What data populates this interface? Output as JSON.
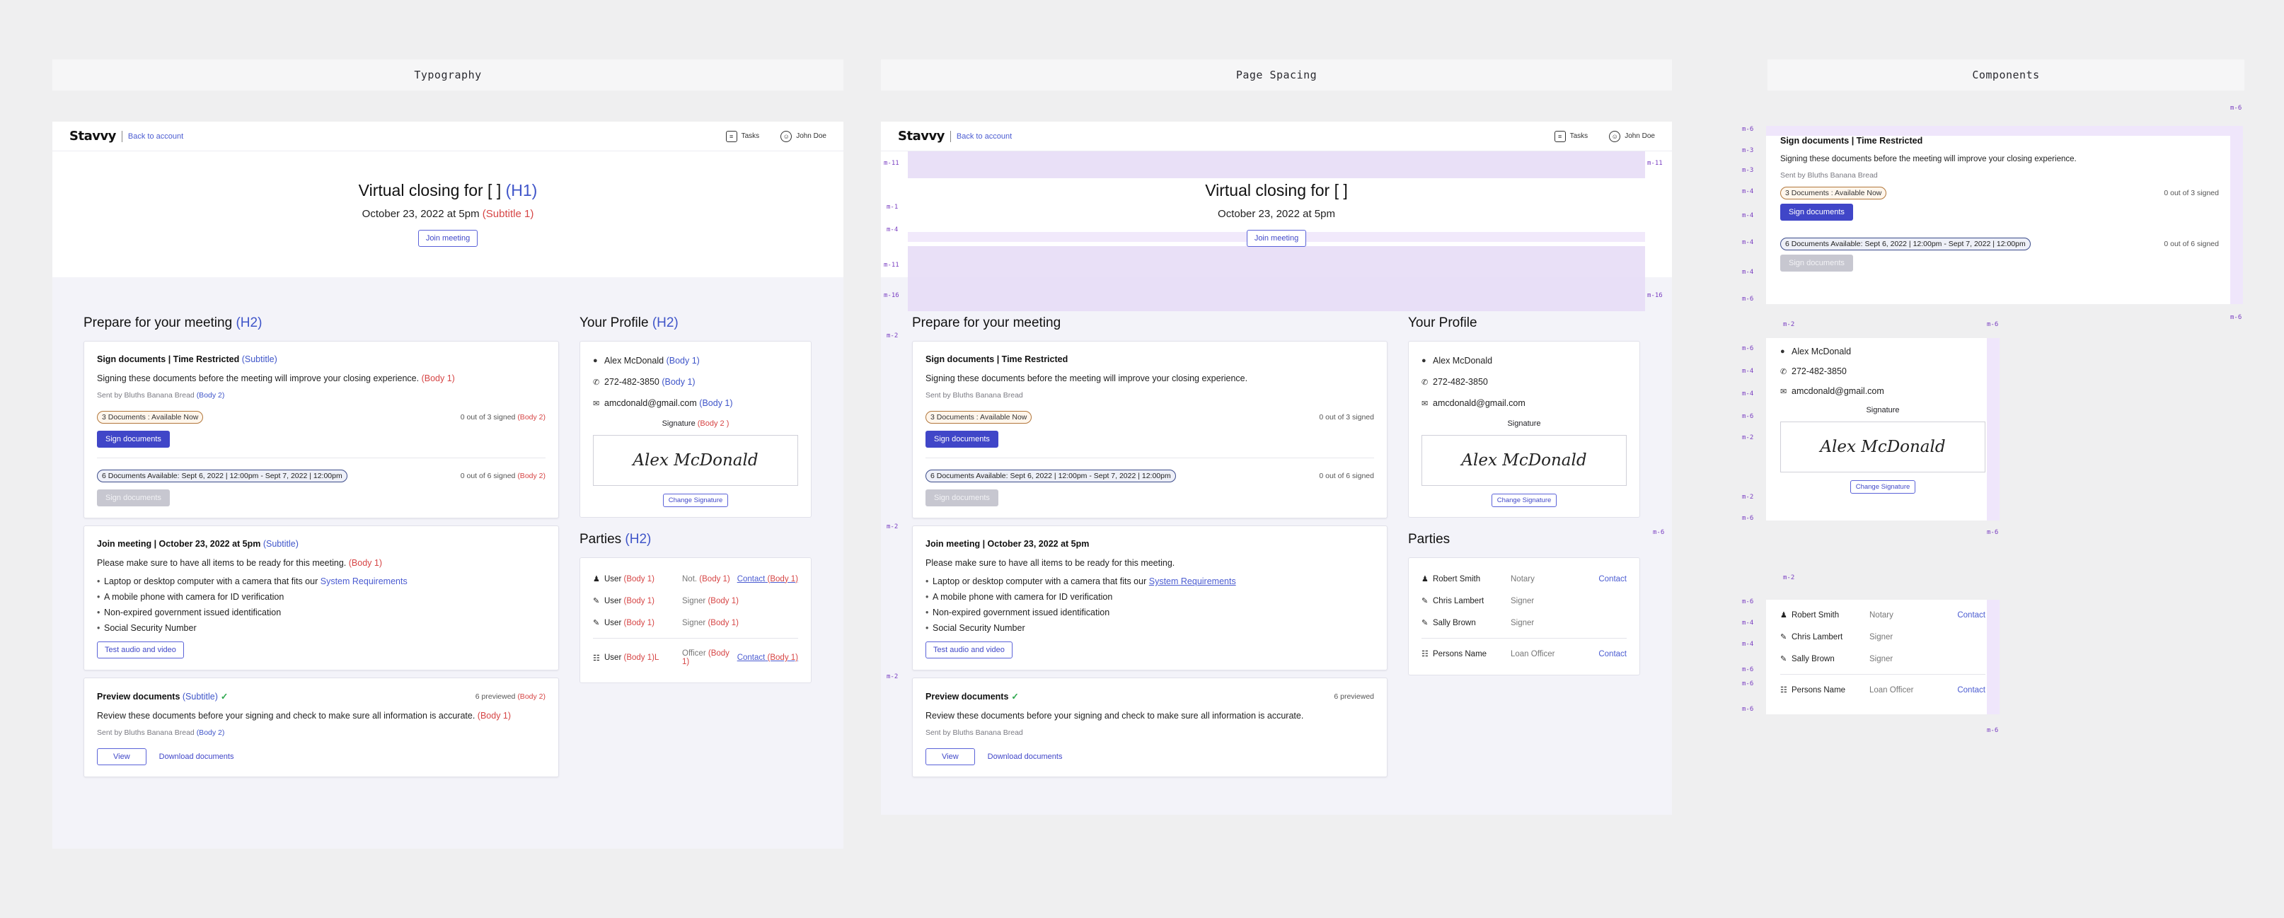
{
  "sections": {
    "typography": "Typography",
    "spacing": "Page Spacing",
    "components": "Components"
  },
  "topbar": {
    "logo": "Stavvy",
    "back": "Back to account",
    "tasks": "Tasks",
    "user": "John Doe"
  },
  "hero": {
    "title": "Virtual closing for [ ]",
    "title_tag": "(H1)",
    "date": "October 23, 2022 at 5pm",
    "date_tag": "(Subtitle 1)",
    "join": "Join meeting"
  },
  "prepare": {
    "heading": "Prepare for your meeting",
    "heading_tag": "(H2)",
    "sign": {
      "title": "Sign documents | Time Restricted",
      "title_tag": "(Subtitle)",
      "body": "Signing these documents before the meeting will improve your closing experience.",
      "body_tag": "(Body 1)",
      "sender": "Sent by Bluths Banana Bread",
      "sender_tag": "(Body 2)",
      "pill1": "3 Documents : Available Now",
      "count1": "0 out of 3 signed",
      "count_tag": "(Body 2)",
      "btn": "Sign documents",
      "pill2": "6 Documents Available: Sept 6, 2022 | 12:00pm - Sept 7, 2022 | 12:00pm",
      "count2": "0 out of 6 signed"
    },
    "join": {
      "title": "Join meeting | October 23, 2022 at 5pm",
      "title_tag": "(Subtitle)",
      "body": "Please make sure to have all items to be ready for this meeting.",
      "body_tag": "(Body 1)",
      "items": [
        "Laptop or desktop computer with a camera that fits our",
        "A mobile phone with camera for ID verification",
        "Non-expired government issued identification",
        "Social Security Number"
      ],
      "req_link": "System Requirements",
      "btn": "Test audio and video"
    },
    "preview": {
      "title": "Preview documents",
      "title_tag": "(Subtitle)",
      "count": "6 previewed",
      "count_tag": "(Body 2)",
      "body": "Review these documents before your signing and check to make sure all information is accurate.",
      "body_tag": "(Body 1)",
      "sender": "Sent by Bluths Banana Bread",
      "sender_tag": "(Body 2)",
      "view": "View",
      "download": "Download documents"
    }
  },
  "profile": {
    "heading": "Your Profile",
    "heading_tag": "(H2)",
    "name": "Alex McDonald",
    "phone": "272-482-3850",
    "email": "amcdonald@gmail.com",
    "tag": "(Body 1)",
    "sig_label": "Signature",
    "sig_tag": "(Body 2 )",
    "signature": "Alex McDonald",
    "change": "Change Signature"
  },
  "parties": {
    "heading": "Parties",
    "heading_tag": "(H2)",
    "typo_rows": [
      {
        "name": "User",
        "role": "Not.",
        "contact": "Contact"
      },
      {
        "name": "User",
        "role": "Signer",
        "contact": ""
      },
      {
        "name": "User",
        "role": "Signer",
        "contact": ""
      },
      {
        "name": "User",
        "role": "Officer",
        "contact": "Contact"
      }
    ],
    "rows": [
      {
        "name": "Robert Smith",
        "role": "Notary",
        "contact": "Contact"
      },
      {
        "name": "Chris Lambert",
        "role": "Signer",
        "contact": ""
      },
      {
        "name": "Sally Brown",
        "role": "Signer",
        "contact": ""
      },
      {
        "name": "Persons Name",
        "role": "Loan Officer",
        "contact": "Contact"
      }
    ],
    "tag": "(Body 1)",
    "tag_short": "(Body 1)L"
  },
  "spacing_marks": [
    "m-11",
    "m-1",
    "m-4",
    "m-11",
    "m-16",
    "m-2",
    "m-6",
    "m-2"
  ],
  "component_marks": [
    "m-6",
    "m-3",
    "m-3",
    "m-4",
    "m-4",
    "m-4",
    "m-4",
    "m-4",
    "m-6",
    "m-2",
    "m-6"
  ]
}
